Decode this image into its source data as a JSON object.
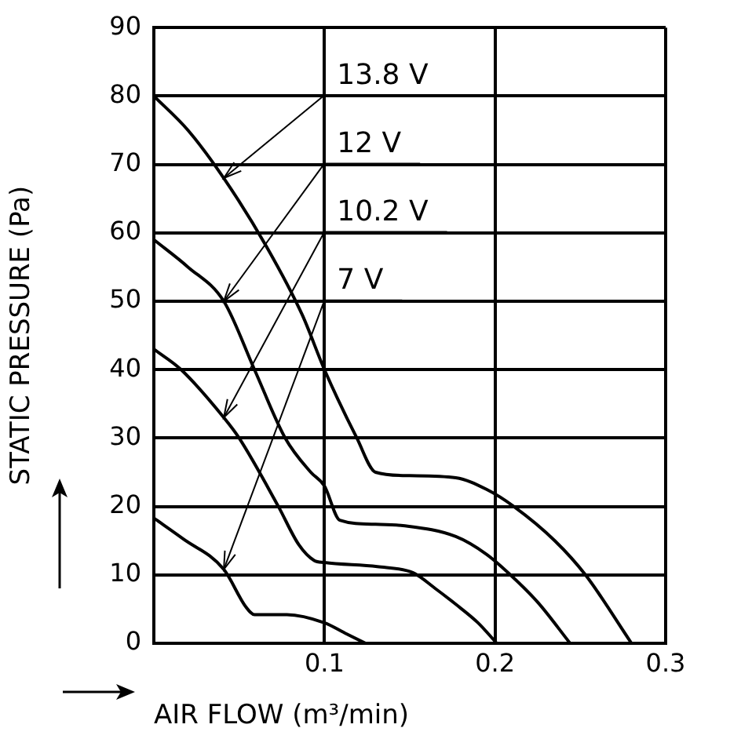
{
  "chart_data": {
    "type": "line",
    "xlabel": "AIR FLOW (m³/min)",
    "ylabel": "STATIC PRESSURE (Pa)",
    "xlim": [
      0,
      0.3
    ],
    "xticks": [
      0.1,
      0.2,
      0.3
    ],
    "ylim": [
      0,
      90
    ],
    "yticks": [
      0,
      10,
      20,
      30,
      40,
      50,
      60,
      70,
      80,
      90
    ],
    "grid": true,
    "legend": "top",
    "marker": "none",
    "line_style": "solid",
    "series": [
      {
        "name": "13.8 V",
        "color": "#000000",
        "x": [
          0,
          0.02,
          0.041,
          0.066,
          0.087,
          0.1,
          0.119,
          0.13,
          0.15,
          0.177,
          0.195,
          0.211,
          0.235,
          0.253,
          0.28
        ],
        "values": [
          80,
          75,
          68,
          58,
          48,
          40,
          30,
          25,
          24.5,
          24.2,
          22.5,
          20,
          15,
          10,
          0
        ]
      },
      {
        "name": "12 V",
        "color": "#000000",
        "x": [
          0,
          0.02,
          0.041,
          0.059,
          0.077,
          0.092,
          0.1,
          0.109,
          0.13,
          0.146,
          0.177,
          0.195,
          0.209,
          0.225,
          0.244
        ],
        "values": [
          59,
          55,
          50,
          40,
          30,
          25,
          23,
          18,
          17.4,
          17.2,
          15.6,
          13,
          10,
          6,
          0
        ]
      },
      {
        "name": "10.2 V",
        "color": "#000000",
        "x": [
          0,
          0.016,
          0.041,
          0.05,
          0.073,
          0.085,
          0.094,
          0.1,
          0.131,
          0.152,
          0.165,
          0.177,
          0.19,
          0.201
        ],
        "values": [
          43,
          40,
          33,
          30,
          20,
          14.4,
          12.1,
          11.8,
          11.2,
          10.3,
          8,
          5.7,
          3,
          0
        ]
      },
      {
        "name": "7 V",
        "color": "#000000",
        "x": [
          0,
          0.017,
          0.041,
          0.054,
          0.059,
          0.078,
          0.1,
          0.112,
          0.124
        ],
        "values": [
          18.3,
          15.3,
          10.8,
          5.3,
          4.2,
          4.2,
          3,
          1.5,
          0
        ]
      }
    ]
  }
}
